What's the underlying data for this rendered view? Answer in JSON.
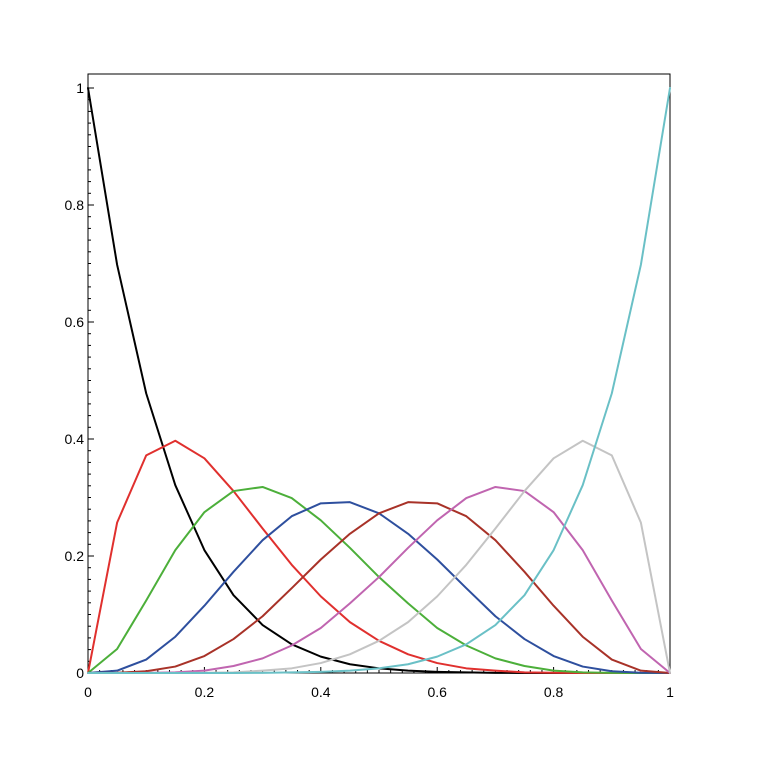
{
  "chart_data": {
    "type": "line",
    "title": "",
    "xlabel": "",
    "ylabel": "",
    "xlim": [
      0,
      1
    ],
    "ylim": [
      0,
      1
    ],
    "grid": false,
    "legend": "none",
    "x_ticks": [
      {
        "value": 0,
        "label": "0"
      },
      {
        "value": 0.2,
        "label": "0.2"
      },
      {
        "value": 0.4,
        "label": "0.4"
      },
      {
        "value": 0.6,
        "label": "0.6"
      },
      {
        "value": 0.8,
        "label": "0.8"
      },
      {
        "value": 1,
        "label": "1"
      }
    ],
    "y_ticks": [
      {
        "value": 0,
        "label": "0"
      },
      {
        "value": 0.2,
        "label": "0.2"
      },
      {
        "value": 0.4,
        "label": "0.4"
      },
      {
        "value": 0.6,
        "label": "0.6"
      },
      {
        "value": 0.8,
        "label": "0.8"
      },
      {
        "value": 1,
        "label": "1"
      }
    ],
    "x": [
      0,
      0.05,
      0.1,
      0.15,
      0.2,
      0.25,
      0.3,
      0.35,
      0.4,
      0.45,
      0.5,
      0.55,
      0.6,
      0.65,
      0.7,
      0.75,
      0.8,
      0.85,
      0.9,
      0.95,
      1
    ],
    "series": [
      {
        "color": "#000000",
        "values": [
          1,
          0.698,
          0.478,
          0.321,
          0.21,
          0.133,
          0.082,
          0.049,
          0.028,
          0.015,
          0.008,
          0.004,
          0.002,
          0.001,
          0.0002,
          0.0001,
          0,
          0,
          0,
          0,
          0
        ]
      },
      {
        "color": "#e0302e",
        "values": [
          0,
          0.257,
          0.372,
          0.397,
          0.367,
          0.311,
          0.247,
          0.185,
          0.131,
          0.087,
          0.055,
          0.032,
          0.017,
          0.008,
          0.004,
          0.001,
          0.0004,
          0.0001,
          0,
          0,
          0
        ]
      },
      {
        "color": "#4caf3a",
        "values": [
          0,
          0.041,
          0.124,
          0.21,
          0.275,
          0.311,
          0.318,
          0.299,
          0.261,
          0.214,
          0.164,
          0.119,
          0.077,
          0.047,
          0.025,
          0.012,
          0.004,
          0.001,
          0.0002,
          0,
          0
        ]
      },
      {
        "color": "#2e4f9e",
        "values": [
          0,
          0.004,
          0.023,
          0.062,
          0.115,
          0.173,
          0.227,
          0.268,
          0.29,
          0.292,
          0.273,
          0.238,
          0.194,
          0.145,
          0.097,
          0.058,
          0.029,
          0.011,
          0.003,
          0.0004,
          0
        ]
      },
      {
        "color": "#a83228",
        "values": [
          0,
          0.0004,
          0.003,
          0.011,
          0.029,
          0.058,
          0.097,
          0.145,
          0.194,
          0.238,
          0.273,
          0.292,
          0.29,
          0.268,
          0.227,
          0.173,
          0.115,
          0.062,
          0.023,
          0.004,
          0
        ]
      },
      {
        "color": "#c065b0",
        "values": [
          0,
          0,
          0.0002,
          0.001,
          0.004,
          0.012,
          0.025,
          0.047,
          0.077,
          0.119,
          0.164,
          0.214,
          0.261,
          0.299,
          0.318,
          0.311,
          0.275,
          0.21,
          0.124,
          0.041,
          0
        ]
      },
      {
        "color": "#c4c4c4",
        "values": [
          0,
          0,
          0,
          0.0001,
          0.0004,
          0.001,
          0.004,
          0.008,
          0.017,
          0.032,
          0.055,
          0.087,
          0.131,
          0.185,
          0.247,
          0.311,
          0.367,
          0.397,
          0.372,
          0.257,
          0
        ]
      },
      {
        "color": "#6ac0c6",
        "values": [
          0,
          0,
          0,
          0,
          0,
          0.0001,
          0.0002,
          0.001,
          0.002,
          0.004,
          0.008,
          0.015,
          0.028,
          0.049,
          0.082,
          0.133,
          0.21,
          0.321,
          0.478,
          0.698,
          1
        ]
      }
    ]
  }
}
